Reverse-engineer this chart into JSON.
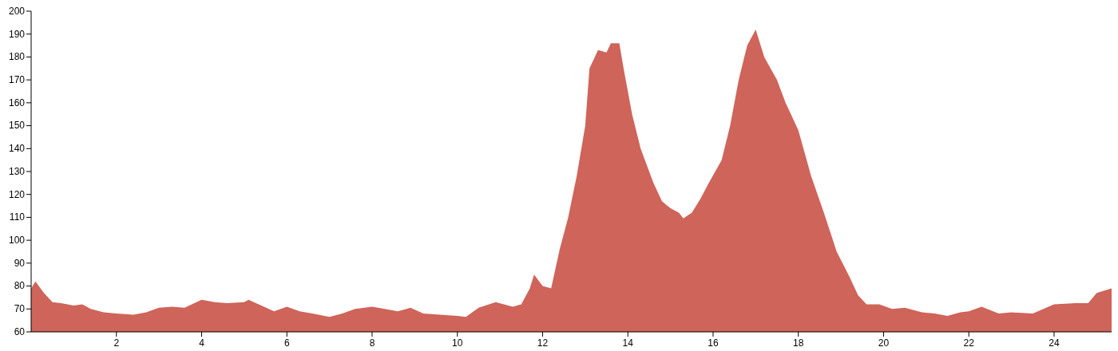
{
  "chart_data": {
    "type": "area",
    "xlim": [
      0,
      25.35
    ],
    "ylim": [
      60,
      200
    ],
    "xticks": [
      2,
      4,
      6,
      8,
      10,
      12,
      14,
      16,
      18,
      20,
      22,
      24
    ],
    "yticks": [
      60,
      70,
      80,
      90,
      100,
      110,
      120,
      130,
      140,
      150,
      160,
      170,
      180,
      190,
      200
    ],
    "x": [
      0,
      0.1,
      0.3,
      0.5,
      0.7,
      1,
      1.2,
      1.4,
      1.7,
      2,
      2.4,
      2.7,
      3,
      3.3,
      3.6,
      4,
      4.3,
      4.6,
      5,
      5.1,
      5.4,
      5.7,
      6,
      6.3,
      6.6,
      7,
      7.3,
      7.6,
      8,
      8.3,
      8.6,
      8.9,
      9.2,
      9.6,
      10,
      10.2,
      10.5,
      10.9,
      11.3,
      11.5,
      11.7,
      11.8,
      12,
      12.2,
      12.4,
      12.6,
      12.8,
      13,
      13.1,
      13.3,
      13.5,
      13.6,
      13.8,
      13.9,
      14.1,
      14.3,
      14.6,
      14.8,
      15,
      15.2,
      15.3,
      15.5,
      15.7,
      15.9,
      16.2,
      16.4,
      16.6,
      16.8,
      17,
      17.2,
      17.5,
      17.7,
      18,
      18.3,
      18.6,
      18.9,
      19.2,
      19.4,
      19.6,
      19.9,
      20.2,
      20.5,
      20.9,
      21.2,
      21.5,
      21.8,
      22,
      22.3,
      22.7,
      23,
      23.5,
      24,
      24.5,
      24.8,
      25,
      25.35
    ],
    "series": [
      {
        "color": "#cf645a",
        "values": [
          79,
          82,
          77,
          73,
          72.5,
          71.5,
          72,
          70,
          68.5,
          68,
          67.5,
          68.5,
          70.5,
          71,
          70.5,
          74,
          73,
          72.5,
          73,
          74,
          71.5,
          69,
          71,
          69,
          68,
          66.5,
          68,
          70,
          71,
          70,
          69,
          70.5,
          68,
          67.5,
          67,
          66.5,
          70.5,
          73,
          71,
          72,
          79,
          85,
          80,
          79,
          96,
          110,
          128,
          150,
          175,
          183,
          182,
          186,
          186,
          175,
          155,
          140,
          125,
          117,
          114,
          112,
          109.5,
          112,
          118,
          125,
          135,
          150,
          170,
          185,
          192,
          180,
          170,
          160,
          148,
          128,
          112,
          95,
          84,
          76,
          72,
          72,
          70,
          70.5,
          68.5,
          68,
          67,
          68.5,
          69,
          71,
          68,
          68.5,
          68,
          72,
          72.5,
          72.5,
          77,
          79
        ]
      }
    ]
  }
}
